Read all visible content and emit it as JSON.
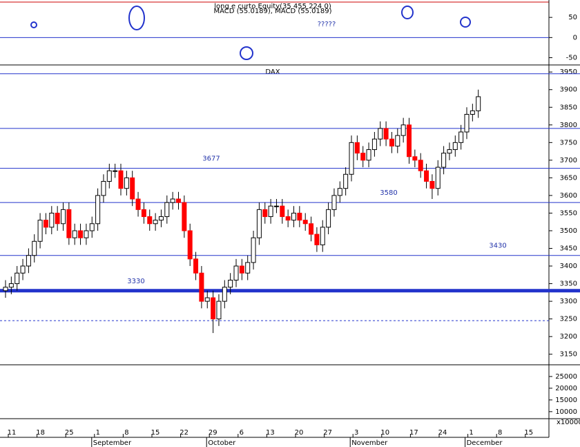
{
  "chart_data": {
    "type": "candlestick",
    "title": "DAX",
    "macd_panel": {
      "header": "long e curto Equity(35 455 224 0)",
      "legend": "MACD (55.0189), MACD (55.0189)",
      "note": "?????",
      "ylim": [
        -68,
        88
      ],
      "yticks": [
        50,
        0,
        -50
      ]
    },
    "osc_panel": {
      "ylim": [
        7000,
        30000
      ],
      "yticks": [
        25000,
        20000,
        15000,
        10000
      ],
      "scale_label": "x10000"
    },
    "ylim": [
      3120,
      3970
    ],
    "yticks": [
      3150,
      3200,
      3250,
      3300,
      3350,
      3400,
      3450,
      3500,
      3550,
      3600,
      3650,
      3700,
      3750,
      3800,
      3850,
      3900,
      3950
    ],
    "week_labels": [
      "11",
      "18",
      "25",
      "1",
      "8",
      "15",
      "22",
      "29",
      "6",
      "13",
      "20",
      "27",
      "3",
      "10",
      "17",
      "24",
      "1",
      "8",
      "15"
    ],
    "month_labels": [
      "September",
      "October",
      "November",
      "December"
    ],
    "levels": [
      3945,
      3790,
      3677,
      3580,
      3430,
      3330
    ],
    "level_labels": [
      3677,
      3580,
      3430,
      3330
    ],
    "dashed_level": 3245,
    "up_color": "#ffffff",
    "down_color": "#ff0000",
    "open": [
      3330,
      3340,
      3350,
      3380,
      3400,
      3430,
      3470,
      3530,
      3510,
      3550,
      3520,
      3560,
      3480,
      3500,
      3480,
      3500,
      3520,
      3600,
      3640,
      3670,
      3670,
      3620,
      3650,
      3590,
      3560,
      3540,
      3520,
      3530,
      3540,
      3580,
      3590,
      3580,
      3500,
      3420,
      3380,
      3300,
      3310,
      3250,
      3300,
      3340,
      3360,
      3400,
      3380,
      3410,
      3480,
      3560,
      3540,
      3570,
      3570,
      3540,
      3530,
      3550,
      3530,
      3520,
      3490,
      3460,
      3510,
      3560,
      3600,
      3620,
      3660,
      3750,
      3720,
      3700,
      3730,
      3760,
      3790,
      3760,
      3740,
      3770,
      3800,
      3710,
      3700,
      3670,
      3640,
      3620,
      3680,
      3720,
      3730,
      3750,
      3780,
      3830,
      3840
    ],
    "high": [
      3360,
      3370,
      3400,
      3420,
      3450,
      3490,
      3550,
      3550,
      3570,
      3570,
      3580,
      3580,
      3520,
      3520,
      3520,
      3540,
      3620,
      3660,
      3690,
      3690,
      3690,
      3670,
      3670,
      3610,
      3580,
      3560,
      3550,
      3560,
      3600,
      3610,
      3610,
      3600,
      3520,
      3440,
      3400,
      3330,
      3330,
      3320,
      3360,
      3380,
      3420,
      3420,
      3430,
      3500,
      3580,
      3580,
      3590,
      3590,
      3590,
      3560,
      3570,
      3570,
      3550,
      3540,
      3510,
      3530,
      3580,
      3620,
      3640,
      3680,
      3770,
      3770,
      3740,
      3750,
      3780,
      3810,
      3810,
      3780,
      3790,
      3820,
      3820,
      3730,
      3720,
      3690,
      3660,
      3700,
      3740,
      3750,
      3770,
      3800,
      3850,
      3860,
      3900
    ],
    "low": [
      3310,
      3320,
      3330,
      3360,
      3380,
      3410,
      3450,
      3490,
      3490,
      3500,
      3500,
      3460,
      3460,
      3460,
      3460,
      3480,
      3500,
      3580,
      3620,
      3650,
      3600,
      3600,
      3570,
      3540,
      3520,
      3500,
      3500,
      3510,
      3520,
      3560,
      3560,
      3480,
      3400,
      3360,
      3280,
      3280,
      3210,
      3230,
      3280,
      3320,
      3340,
      3360,
      3360,
      3390,
      3460,
      3520,
      3520,
      3550,
      3520,
      3510,
      3510,
      3510,
      3500,
      3470,
      3440,
      3440,
      3490,
      3540,
      3580,
      3600,
      3640,
      3700,
      3680,
      3680,
      3710,
      3740,
      3740,
      3720,
      3720,
      3750,
      3690,
      3680,
      3650,
      3620,
      3590,
      3600,
      3660,
      3700,
      3710,
      3730,
      3760,
      3810,
      3820
    ],
    "close": [
      3340,
      3350,
      3380,
      3400,
      3430,
      3470,
      3530,
      3510,
      3550,
      3520,
      3560,
      3480,
      3500,
      3480,
      3500,
      3520,
      3600,
      3640,
      3670,
      3670,
      3620,
      3650,
      3590,
      3560,
      3540,
      3520,
      3530,
      3540,
      3580,
      3590,
      3580,
      3500,
      3420,
      3380,
      3300,
      3310,
      3250,
      3300,
      3340,
      3360,
      3400,
      3380,
      3410,
      3480,
      3560,
      3540,
      3570,
      3570,
      3540,
      3530,
      3550,
      3530,
      3520,
      3490,
      3460,
      3510,
      3560,
      3600,
      3620,
      3660,
      3750,
      3720,
      3700,
      3730,
      3760,
      3790,
      3760,
      3740,
      3770,
      3800,
      3710,
      3700,
      3670,
      3640,
      3620,
      3680,
      3720,
      3730,
      3750,
      3780,
      3830,
      3840,
      3880
    ]
  }
}
